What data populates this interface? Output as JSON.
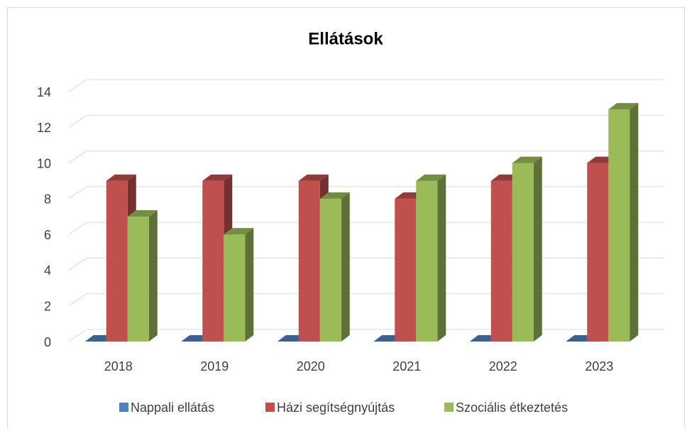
{
  "chart_data": {
    "type": "bar3d",
    "title": "Ellátások",
    "categories": [
      "2018",
      "2019",
      "2020",
      "2021",
      "2022",
      "2023"
    ],
    "series": [
      {
        "name": "Nappali ellátás",
        "color": "#4f81bd",
        "values": [
          0,
          0,
          0,
          0,
          0,
          0
        ]
      },
      {
        "name": "Házi segítségnyújtás",
        "color": "#c0504d",
        "values": [
          9,
          9,
          9,
          8,
          9,
          10
        ]
      },
      {
        "name": "Szociális étkeztetés",
        "color": "#9bbb59",
        "values": [
          7,
          6,
          8,
          9,
          10,
          13
        ]
      }
    ],
    "ylim": [
      0,
      14
    ],
    "yticks": [
      0,
      2,
      4,
      6,
      8,
      10,
      12,
      14
    ],
    "grid": true,
    "legend": "bottom"
  }
}
